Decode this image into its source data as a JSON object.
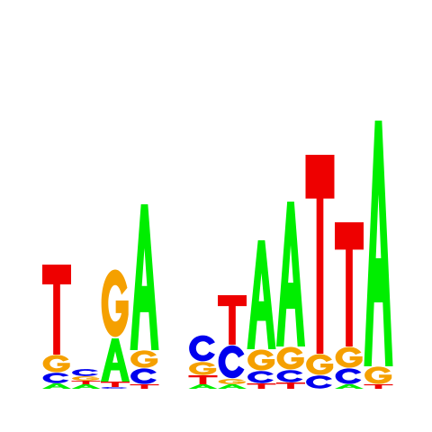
{
  "motif_logo": {
    "colors": {
      "A": "#00ee00",
      "C": "#0000ee",
      "G": "#f5a000",
      "T": "#ee0000"
    },
    "columns": [
      {
        "position": 1,
        "letters": [
          [
            "A",
            0.06
          ],
          [
            "C",
            0.12
          ],
          [
            "G",
            0.2
          ],
          [
            "T",
            1.0
          ]
        ]
      },
      {
        "position": 2,
        "letters": [
          [
            "A",
            0.05
          ],
          [
            "T",
            0.04
          ],
          [
            "G",
            0.05
          ],
          [
            "C",
            0.08
          ]
        ]
      },
      {
        "position": 3,
        "letters": [
          [
            "C",
            0.02
          ],
          [
            "T",
            0.06
          ],
          [
            "A",
            0.48
          ],
          [
            "G",
            0.78
          ]
        ]
      },
      {
        "position": 4,
        "letters": [
          [
            "T",
            0.05
          ],
          [
            "C",
            0.18
          ],
          [
            "G",
            0.2
          ],
          [
            "A",
            1.62
          ]
        ]
      },
      {
        "position": 5,
        "letters": []
      },
      {
        "position": 6,
        "letters": [
          [
            "A",
            0.05
          ],
          [
            "T",
            0.1
          ],
          [
            "G",
            0.15
          ],
          [
            "C",
            0.3
          ]
        ]
      },
      {
        "position": 7,
        "letters": [
          [
            "A",
            0.05
          ],
          [
            "G",
            0.06
          ],
          [
            "C",
            0.38
          ],
          [
            "T",
            0.55
          ]
        ]
      },
      {
        "position": 8,
        "letters": [
          [
            "T",
            0.06
          ],
          [
            "C",
            0.14
          ],
          [
            "G",
            0.24
          ],
          [
            "A",
            1.21
          ]
        ]
      },
      {
        "position": 9,
        "letters": [
          [
            "T",
            0.07
          ],
          [
            "C",
            0.14
          ],
          [
            "G",
            0.26
          ],
          [
            "A",
            1.61
          ]
        ]
      },
      {
        "position": 10,
        "letters": [
          [
            "C",
            0.15
          ],
          [
            "G",
            0.24
          ],
          [
            "T",
            2.21
          ]
        ]
      },
      {
        "position": 11,
        "letters": [
          [
            "A",
            0.05
          ],
          [
            "C",
            0.18
          ],
          [
            "G",
            0.24
          ],
          [
            "T",
            1.38
          ]
        ]
      },
      {
        "position": 12,
        "letters": [
          [
            "T",
            0.05
          ],
          [
            "G",
            0.2
          ],
          [
            "A",
            2.73
          ]
        ]
      }
    ]
  }
}
